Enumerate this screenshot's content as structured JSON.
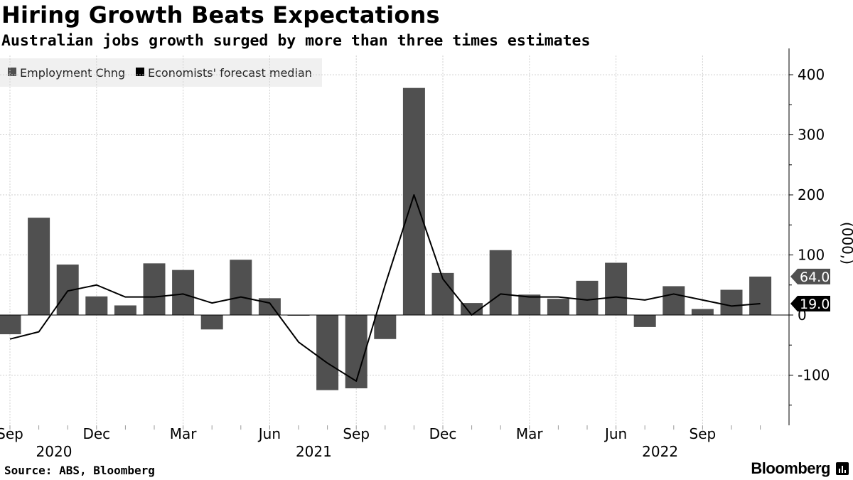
{
  "title": "Hiring Growth Beats Expectations",
  "subtitle": "Australian jobs growth surged by more than three times estimates",
  "source": "Source: ABS, Bloomberg",
  "brand": "Bloomberg",
  "chart_data": {
    "type": "bar",
    "unit_label": "(000,)",
    "ylim": [
      -160,
      420
    ],
    "yticks": [
      -100,
      0,
      100,
      200,
      300,
      400
    ],
    "grid": true,
    "legend_position": "top-left",
    "x_index_ticks": [
      {
        "index": 0,
        "label": "Sep",
        "year": "2020"
      },
      {
        "index": 3,
        "label": "Dec"
      },
      {
        "index": 6,
        "label": "Mar"
      },
      {
        "index": 9,
        "label": "Jun",
        "year": "2021"
      },
      {
        "index": 12,
        "label": "Sep"
      },
      {
        "index": 15,
        "label": "Dec"
      },
      {
        "index": 18,
        "label": "Mar"
      },
      {
        "index": 21,
        "label": "Jun",
        "year": "2022"
      },
      {
        "index": 24,
        "label": "Sep"
      }
    ],
    "categories": [
      "Sep 2020",
      "Oct 2020",
      "Nov 2020",
      "Dec 2020",
      "Jan 2021",
      "Feb 2021",
      "Mar 2021",
      "Apr 2021",
      "May 2021",
      "Jun 2021",
      "Jul 2021",
      "Aug 2021",
      "Sep 2021",
      "Oct 2021",
      "Nov 2021",
      "Dec 2021",
      "Jan 2022",
      "Feb 2022",
      "Mar 2022",
      "Apr 2022",
      "May 2022",
      "Jun 2022",
      "Jul 2022",
      "Aug 2022",
      "Sep 2022",
      "Oct 2022",
      "Nov 2022"
    ],
    "series": [
      {
        "name": "Employment Chng",
        "type": "bar",
        "color": "#505050",
        "values": [
          -32,
          162,
          84,
          31,
          16,
          86,
          75,
          -24,
          92,
          28,
          -1,
          -125,
          -122,
          -40,
          378,
          70,
          20,
          108,
          34,
          27,
          57,
          87,
          -20,
          48,
          10,
          42,
          64
        ]
      },
      {
        "name": "Economists' forecast median",
        "type": "line",
        "color": "#000000",
        "values": [
          -40,
          -28,
          40,
          50,
          30,
          30,
          35,
          20,
          30,
          20,
          -45,
          -80,
          -110,
          50,
          200,
          60,
          0,
          35,
          30,
          30,
          25,
          30,
          25,
          35,
          25,
          15,
          19
        ]
      }
    ],
    "end_labels": {
      "bars": "64.0",
      "line": "19.0"
    }
  }
}
